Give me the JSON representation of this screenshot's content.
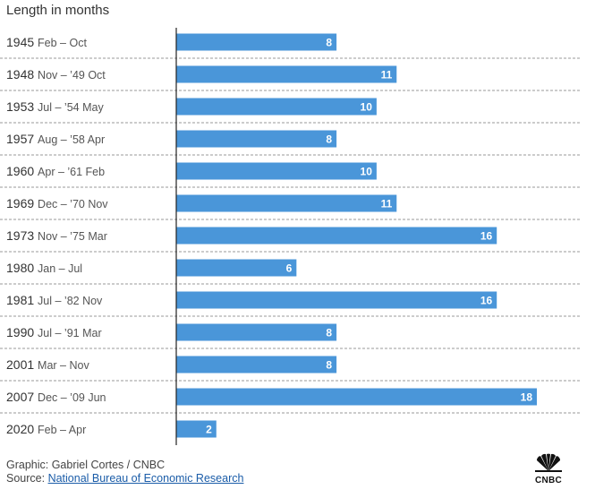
{
  "chart_data": {
    "type": "bar",
    "orientation": "horizontal",
    "title": "Length in months",
    "categories": [
      {
        "year": "1945",
        "range": "Feb – Oct"
      },
      {
        "year": "1948",
        "range": "Nov – ’49 Oct"
      },
      {
        "year": "1953",
        "range": "Jul – ’54 May"
      },
      {
        "year": "1957",
        "range": "Aug – ’58 Apr"
      },
      {
        "year": "1960",
        "range": "Apr – ’61 Feb"
      },
      {
        "year": "1969",
        "range": "Dec – ’70 Nov"
      },
      {
        "year": "1973",
        "range": "Nov – ’75 Mar"
      },
      {
        "year": "1980",
        "range": "Jan – Jul"
      },
      {
        "year": "1981",
        "range": "Jul – ’82 Nov"
      },
      {
        "year": "1990",
        "range": "Jul – ’91 Mar"
      },
      {
        "year": "2001",
        "range": "Mar – Nov"
      },
      {
        "year": "2007",
        "range": "Dec – ’09 Jun"
      },
      {
        "year": "2020",
        "range": "Feb – Apr"
      }
    ],
    "values": [
      8,
      11,
      10,
      8,
      10,
      11,
      16,
      6,
      16,
      8,
      8,
      18,
      2
    ],
    "xlim": [
      0,
      18
    ],
    "bar_color": "#4a96d9",
    "data_labels": true,
    "grid": false,
    "row_separators": "dashed"
  },
  "footer": {
    "credit": "Graphic: Gabriel Cortes / CNBC",
    "source_prefix": "Source: ",
    "source_name": "National Bureau of Economic Research"
  },
  "logo": {
    "text": "CNBC",
    "icon": "peacock-icon"
  }
}
